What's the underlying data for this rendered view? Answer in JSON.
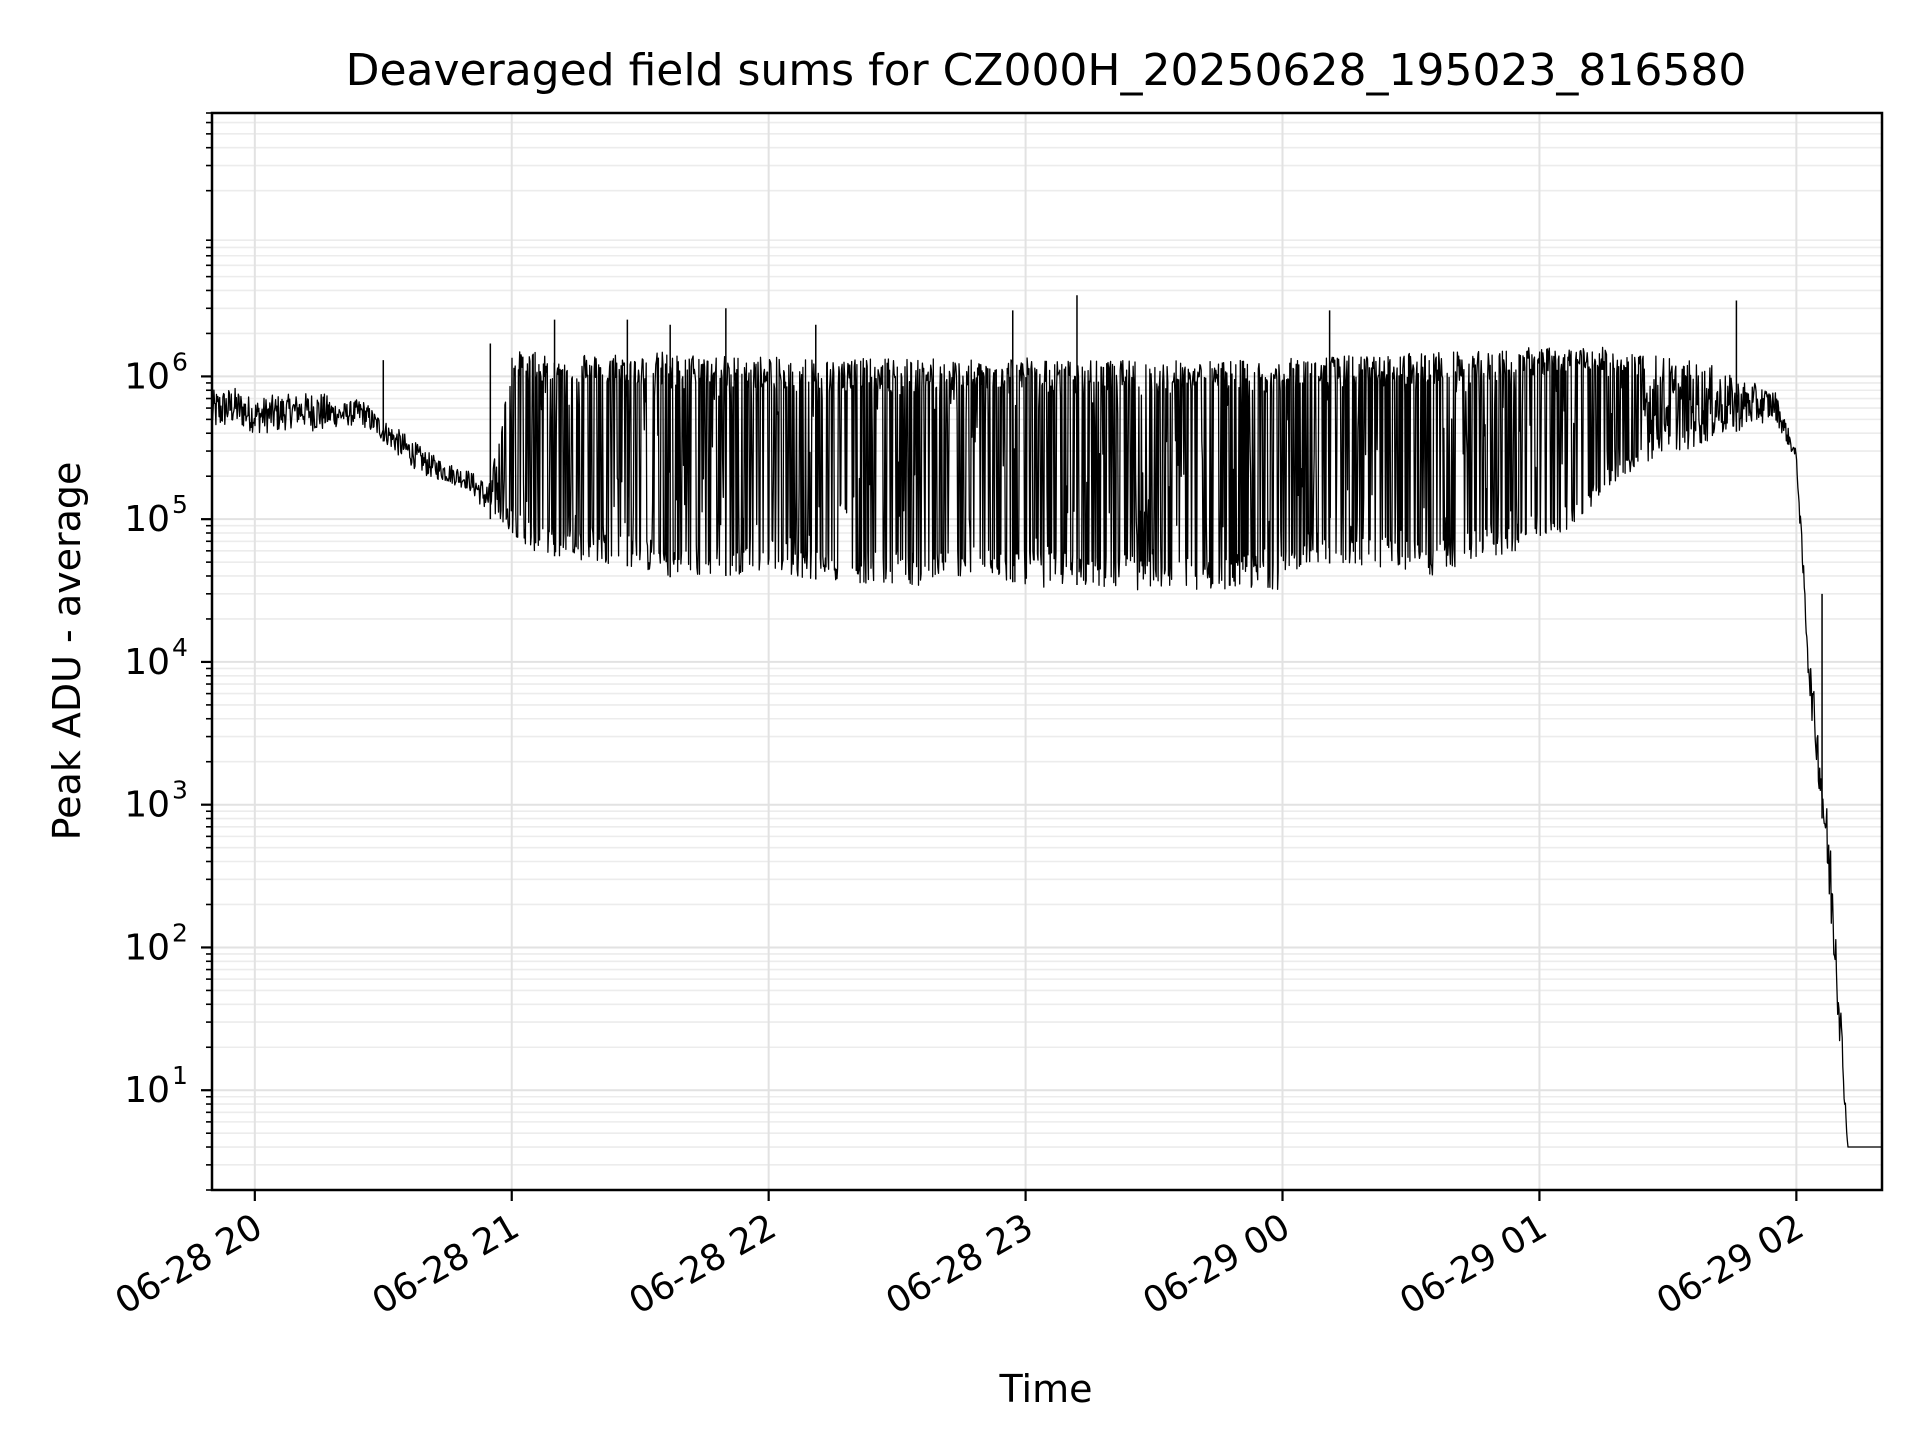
{
  "chart_data": {
    "type": "line",
    "title": "Deaveraged field sums for CZ000H_20250628_195023_816580",
    "xlabel": "Time",
    "ylabel": "Peak ADU - average",
    "y_scale": "log",
    "x_axis_type": "datetime",
    "xlim": [
      "2025-06-28 19:50",
      "2025-06-29 02:20"
    ],
    "ylim": [
      2,
      70000000
    ],
    "x_ticks": [
      {
        "value": "2025-06-28 20:00",
        "label": "06-28 20"
      },
      {
        "value": "2025-06-28 21:00",
        "label": "06-28 21"
      },
      {
        "value": "2025-06-28 22:00",
        "label": "06-28 22"
      },
      {
        "value": "2025-06-28 23:00",
        "label": "06-28 23"
      },
      {
        "value": "2025-06-29 00:00",
        "label": "06-29 00"
      },
      {
        "value": "2025-06-29 01:00",
        "label": "06-29 01"
      },
      {
        "value": "2025-06-29 02:00",
        "label": "06-29 02"
      }
    ],
    "y_ticks": [
      {
        "value": 10,
        "base": "10",
        "exp": "1"
      },
      {
        "value": 100,
        "base": "10",
        "exp": "2"
      },
      {
        "value": 1000,
        "base": "10",
        "exp": "3"
      },
      {
        "value": 10000,
        "base": "10",
        "exp": "4"
      },
      {
        "value": 100000,
        "base": "10",
        "exp": "5"
      },
      {
        "value": 1000000,
        "base": "10",
        "exp": "6"
      }
    ],
    "grid": true,
    "line_color": "#000000",
    "series": [
      {
        "x": [
          "2025-06-28 19:50",
          "2025-06-28 19:55",
          "2025-06-28 20:00",
          "2025-06-28 20:05",
          "2025-06-28 20:10",
          "2025-06-28 20:15",
          "2025-06-28 20:20",
          "2025-06-28 20:25",
          "2025-06-28 20:30",
          "2025-06-28 20:35",
          "2025-06-28 20:40",
          "2025-06-28 20:45",
          "2025-06-28 20:50",
          "2025-06-28 20:55",
          "2025-06-28 21:00",
          "2025-06-28 21:05",
          "2025-06-28 21:10",
          "2025-06-28 21:15",
          "2025-06-28 21:20",
          "2025-06-28 21:25",
          "2025-06-28 21:30",
          "2025-06-28 21:35",
          "2025-06-28 21:40",
          "2025-06-28 21:45",
          "2025-06-28 21:50",
          "2025-06-28 21:55",
          "2025-06-28 22:00",
          "2025-06-28 22:05",
          "2025-06-28 22:10",
          "2025-06-28 22:15",
          "2025-06-28 22:20",
          "2025-06-28 22:25",
          "2025-06-28 22:30",
          "2025-06-28 22:35",
          "2025-06-28 22:40",
          "2025-06-28 22:45",
          "2025-06-28 22:50",
          "2025-06-28 22:55",
          "2025-06-28 23:00",
          "2025-06-28 23:05",
          "2025-06-28 23:10",
          "2025-06-28 23:15",
          "2025-06-28 23:20",
          "2025-06-28 23:25",
          "2025-06-28 23:30",
          "2025-06-28 23:35",
          "2025-06-28 23:40",
          "2025-06-28 23:45",
          "2025-06-28 23:50",
          "2025-06-28 23:55",
          "2025-06-29 00:00",
          "2025-06-29 00:05",
          "2025-06-29 00:10",
          "2025-06-29 00:15",
          "2025-06-29 00:20",
          "2025-06-29 00:25",
          "2025-06-29 00:30",
          "2025-06-29 00:35",
          "2025-06-29 00:40",
          "2025-06-29 00:45",
          "2025-06-29 00:50",
          "2025-06-29 00:55",
          "2025-06-29 01:00",
          "2025-06-29 01:05",
          "2025-06-29 01:10",
          "2025-06-29 01:15",
          "2025-06-29 01:20",
          "2025-06-29 01:25",
          "2025-06-29 01:30",
          "2025-06-29 01:35",
          "2025-06-29 01:40",
          "2025-06-29 01:45",
          "2025-06-29 01:50",
          "2025-06-29 01:55",
          "2025-06-29 02:00",
          "2025-06-29 02:03",
          "2025-06-29 02:06",
          "2025-06-29 02:09",
          "2025-06-29 02:12",
          "2025-06-29 02:15",
          "2025-06-29 02:18",
          "2025-06-29 02:20"
        ],
        "y_high": [
          800000,
          850000,
          700000,
          750000,
          750000,
          800000,
          650000,
          700000,
          500000,
          400000,
          300000,
          250000,
          220000,
          180000,
          1500000,
          1500000,
          1300000,
          1600000,
          1400000,
          1500000,
          1400000,
          1500000,
          1400000,
          1500000,
          1400000,
          1400000,
          1400000,
          1300000,
          1400000,
          1300000,
          1400000,
          1300000,
          1400000,
          1300000,
          1400000,
          1300000,
          1300000,
          1400000,
          1400000,
          1300000,
          1300000,
          1300000,
          1300000,
          1300000,
          1300000,
          1300000,
          1300000,
          1300000,
          1300000,
          1300000,
          1300000,
          1400000,
          1400000,
          1400000,
          1400000,
          1400000,
          1500000,
          1500000,
          1500000,
          1500000,
          1500000,
          1600000,
          1600000,
          1600000,
          1600000,
          1600000,
          1500000,
          1500000,
          1400000,
          1300000,
          1200000,
          1000000,
          900000,
          800000,
          300000,
          12000,
          2000,
          300,
          4,
          4,
          4,
          4
        ],
        "y_low": [
          400000,
          450000,
          400000,
          400000,
          450000,
          400000,
          450000,
          450000,
          350000,
          250000,
          200000,
          180000,
          160000,
          100000,
          80000,
          60000,
          55000,
          50000,
          50000,
          48000,
          45000,
          40000,
          38000,
          40000,
          40000,
          42000,
          45000,
          40000,
          38000,
          37000,
          36000,
          35000,
          36000,
          34000,
          36000,
          40000,
          38000,
          37000,
          35000,
          33000,
          35000,
          34000,
          33000,
          32000,
          32000,
          33000,
          32000,
          32000,
          32000,
          33000,
          32000,
          50000,
          50000,
          45000,
          48000,
          45000,
          42000,
          40000,
          45000,
          50000,
          55000,
          60000,
          70000,
          80000,
          100000,
          150000,
          200000,
          250000,
          300000,
          300000,
          350000,
          400000,
          450000,
          500000,
          250000,
          6000,
          800,
          60,
          4,
          4,
          4,
          4
        ]
      }
    ],
    "spikes": [
      {
        "x": "2025-06-28 20:30",
        "y": 1300000
      },
      {
        "x": "2025-06-28 20:55",
        "y": 1700000
      },
      {
        "x": "2025-06-28 21:10",
        "y": 2500000
      },
      {
        "x": "2025-06-28 21:27",
        "y": 2500000
      },
      {
        "x": "2025-06-28 21:37",
        "y": 2300000
      },
      {
        "x": "2025-06-28 21:50",
        "y": 3000000
      },
      {
        "x": "2025-06-28 22:11",
        "y": 2300000
      },
      {
        "x": "2025-06-28 22:57",
        "y": 2900000
      },
      {
        "x": "2025-06-28 23:12",
        "y": 3700000
      },
      {
        "x": "2025-06-29 00:11",
        "y": 2900000
      },
      {
        "x": "2025-06-29 01:46",
        "y": 3400000
      },
      {
        "x": "2025-06-29 02:06",
        "y": 30000
      }
    ]
  }
}
